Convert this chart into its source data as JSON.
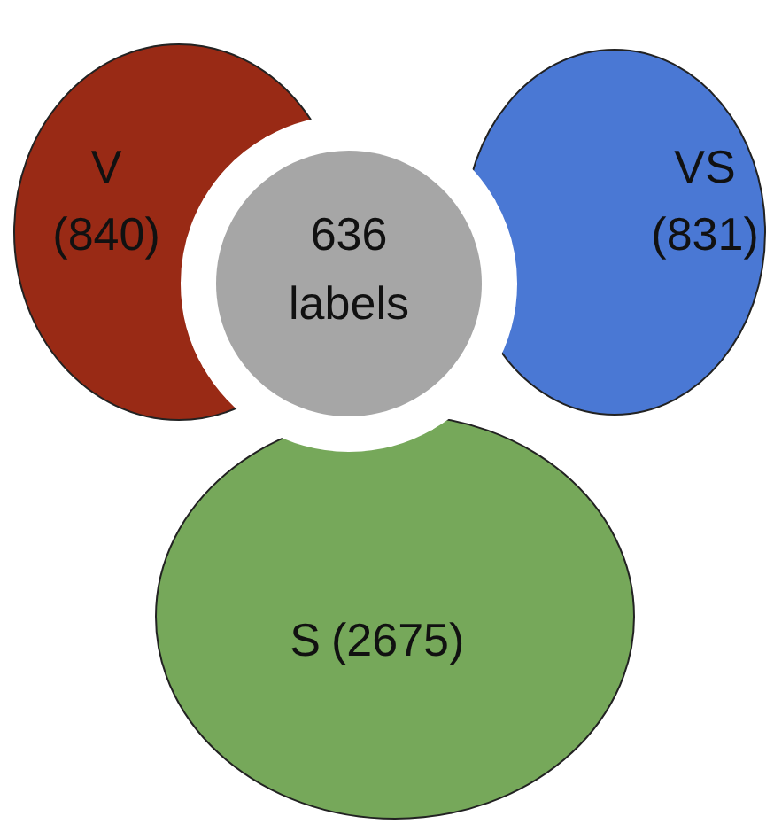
{
  "chart_data": {
    "type": "other",
    "categories": [
      "V",
      "VS",
      "S",
      "labels"
    ],
    "values": [
      840,
      831,
      2675,
      636
    ],
    "value_labels": [
      "(840)",
      "(831)",
      "(2675)",
      "636"
    ],
    "colors": [
      "#992a15",
      "#4a78d4",
      "#76a85a",
      "#a6a6a6"
    ]
  }
}
